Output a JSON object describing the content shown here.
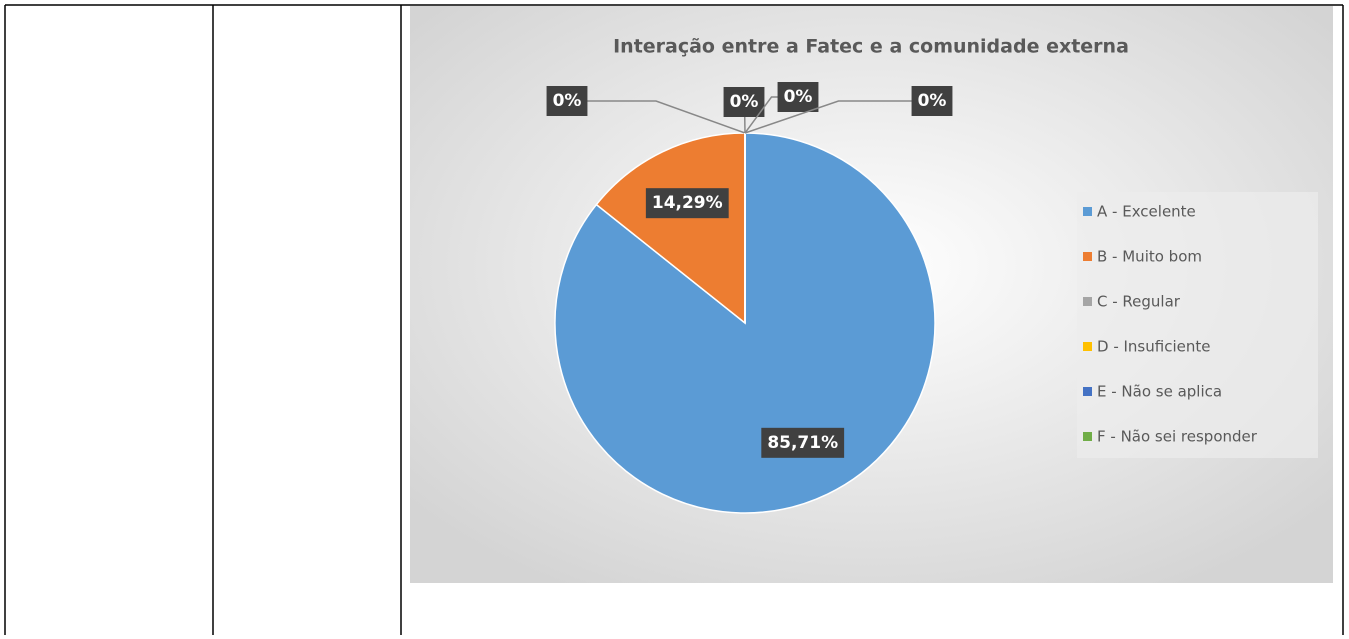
{
  "chart_data": {
    "type": "pie",
    "title": "Interação entre a Fatec e a comunidade externa",
    "categories": [
      "A - Excelente",
      "B - Muito bom",
      "C - Regular",
      "D - Insuficiente",
      "E - Não se aplica",
      "F - Não sei responder"
    ],
    "values": [
      85.71,
      14.29,
      0,
      0,
      0,
      0
    ],
    "value_labels": [
      "85,71%",
      "14,29%",
      "0%",
      "0%",
      "0%",
      "0%"
    ],
    "colors": [
      "#5b9bd5",
      "#ed7d31",
      "#a5a5a5",
      "#ffc000",
      "#4472c4",
      "#70ad47"
    ],
    "legend": "right"
  }
}
